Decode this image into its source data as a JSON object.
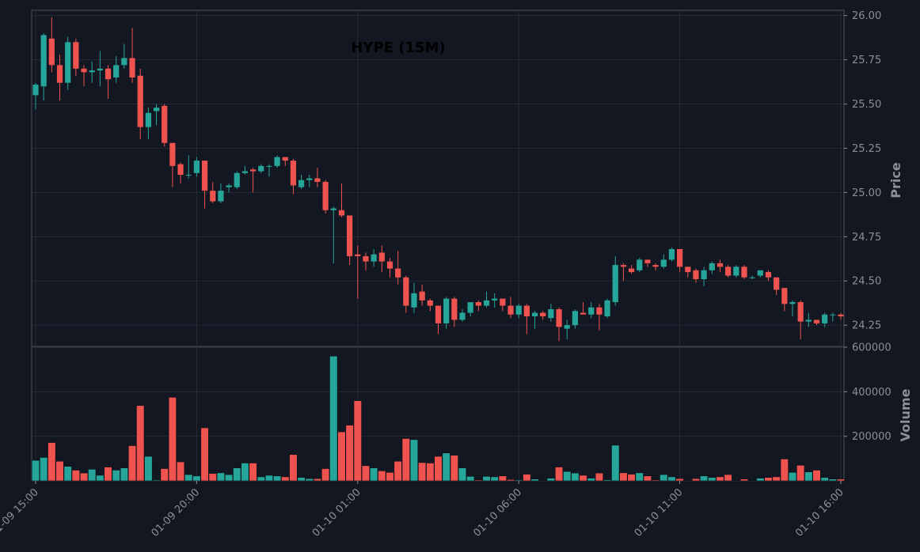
{
  "chart_data": {
    "type": "candlestick",
    "title": "HYPE (15M)",
    "interval": "15m",
    "colors": {
      "up": "#26a69a",
      "down": "#ef5350",
      "background": "#131722",
      "grid": "#2a2e39",
      "axis": "#8a8f98",
      "frame": "#3a3e48"
    },
    "price_panel": {
      "ylabel": "Price",
      "ylim": [
        24.13,
        26.03
      ],
      "yticks": [
        24.25,
        24.5,
        24.75,
        25.0,
        25.25,
        25.5,
        25.75,
        26.0
      ],
      "ytick_labels": [
        "24.25",
        "24.50",
        "24.75",
        "25.00",
        "25.25",
        "25.50",
        "25.75",
        "26.00"
      ]
    },
    "volume_panel": {
      "ylabel": "Volume",
      "ylim": [
        0,
        600000
      ],
      "yticks": [
        200000,
        400000,
        600000
      ],
      "ytick_labels": [
        "200000",
        "400000",
        "600000"
      ]
    },
    "x_axis": {
      "start": "01-09 15:00",
      "xticks": [
        0,
        20,
        40,
        60,
        80,
        100
      ],
      "xtick_labels": [
        "01-09 15:00",
        "01-09 20:00",
        "01-10 01:00",
        "01-10 06:00",
        "01-10 11:00",
        "01-10 16:00"
      ]
    },
    "grid": true,
    "ohlc": [
      [
        25.55,
        25.62,
        25.47,
        25.61
      ],
      [
        25.6,
        25.9,
        25.52,
        25.89
      ],
      [
        25.87,
        25.99,
        25.68,
        25.72
      ],
      [
        25.72,
        25.78,
        25.52,
        25.62
      ],
      [
        25.62,
        25.88,
        25.58,
        25.85
      ],
      [
        25.85,
        25.87,
        25.66,
        25.7
      ],
      [
        25.7,
        25.72,
        25.6,
        25.68
      ],
      [
        25.68,
        25.74,
        25.62,
        25.69
      ],
      [
        25.69,
        25.8,
        25.6,
        25.7
      ],
      [
        25.7,
        25.72,
        25.53,
        25.64
      ],
      [
        25.65,
        25.77,
        25.62,
        25.72
      ],
      [
        25.72,
        25.84,
        25.7,
        25.76
      ],
      [
        25.76,
        25.93,
        25.62,
        25.65
      ],
      [
        25.66,
        25.7,
        25.3,
        25.37
      ],
      [
        25.37,
        25.48,
        25.3,
        25.45
      ],
      [
        25.46,
        25.5,
        25.38,
        25.48
      ],
      [
        25.49,
        25.5,
        25.26,
        25.28
      ],
      [
        25.28,
        25.28,
        25.03,
        25.15
      ],
      [
        25.16,
        25.17,
        25.05,
        25.1
      ],
      [
        25.1,
        25.21,
        25.08,
        25.1
      ],
      [
        25.11,
        25.2,
        25.09,
        25.18
      ],
      [
        25.18,
        25.18,
        24.91,
        25.01
      ],
      [
        25.01,
        25.06,
        24.94,
        24.95
      ],
      [
        24.95,
        25.05,
        24.94,
        25.01
      ],
      [
        25.03,
        25.05,
        25.0,
        25.04
      ],
      [
        25.03,
        25.12,
        25.02,
        25.11
      ],
      [
        25.11,
        25.15,
        25.1,
        25.12
      ],
      [
        25.13,
        25.14,
        25.0,
        25.12
      ],
      [
        25.12,
        25.16,
        25.11,
        25.15
      ],
      [
        25.15,
        25.16,
        25.09,
        25.15
      ],
      [
        25.15,
        25.21,
        25.14,
        25.2
      ],
      [
        25.2,
        25.2,
        25.15,
        25.18
      ],
      [
        25.18,
        25.19,
        24.99,
        25.04
      ],
      [
        25.03,
        25.1,
        25.02,
        25.07
      ],
      [
        25.07,
        25.1,
        25.03,
        25.08
      ],
      [
        25.08,
        25.14,
        25.03,
        25.06
      ],
      [
        25.06,
        25.07,
        24.88,
        24.9
      ],
      [
        24.9,
        24.92,
        24.6,
        24.91
      ],
      [
        24.9,
        25.05,
        24.86,
        24.87
      ],
      [
        24.87,
        24.87,
        24.59,
        24.64
      ],
      [
        24.65,
        24.7,
        24.4,
        24.64
      ],
      [
        24.64,
        24.66,
        24.56,
        24.61
      ],
      [
        24.61,
        24.68,
        24.58,
        24.65
      ],
      [
        24.66,
        24.7,
        24.55,
        24.61
      ],
      [
        24.61,
        24.63,
        24.52,
        24.57
      ],
      [
        24.57,
        24.67,
        24.48,
        24.52
      ],
      [
        24.52,
        24.53,
        24.32,
        24.36
      ],
      [
        24.35,
        24.49,
        24.32,
        24.43
      ],
      [
        24.44,
        24.48,
        24.36,
        24.39
      ],
      [
        24.39,
        24.4,
        24.33,
        24.36
      ],
      [
        24.36,
        24.36,
        24.2,
        24.26
      ],
      [
        24.26,
        24.41,
        24.23,
        24.4
      ],
      [
        24.4,
        24.41,
        24.24,
        24.28
      ],
      [
        24.28,
        24.34,
        24.27,
        24.32
      ],
      [
        24.32,
        24.38,
        24.3,
        24.38
      ],
      [
        24.38,
        24.39,
        24.33,
        24.36
      ],
      [
        24.36,
        24.44,
        24.35,
        24.39
      ],
      [
        24.39,
        24.43,
        24.35,
        24.4
      ],
      [
        24.4,
        24.4,
        24.33,
        24.36
      ],
      [
        24.36,
        24.41,
        24.29,
        24.31
      ],
      [
        24.31,
        24.37,
        24.29,
        24.36
      ],
      [
        24.36,
        24.37,
        24.2,
        24.3
      ],
      [
        24.3,
        24.33,
        24.23,
        24.32
      ],
      [
        24.32,
        24.33,
        24.28,
        24.3
      ],
      [
        24.29,
        24.37,
        24.27,
        24.34
      ],
      [
        24.34,
        24.35,
        24.16,
        24.24
      ],
      [
        24.23,
        24.28,
        24.17,
        24.25
      ],
      [
        24.25,
        24.34,
        24.23,
        24.33
      ],
      [
        24.32,
        24.38,
        24.31,
        24.31
      ],
      [
        24.31,
        24.38,
        24.29,
        24.35
      ],
      [
        24.35,
        24.37,
        24.22,
        24.31
      ],
      [
        24.3,
        24.4,
        24.29,
        24.39
      ],
      [
        24.38,
        24.64,
        24.36,
        24.59
      ],
      [
        24.59,
        24.6,
        24.5,
        24.58
      ],
      [
        24.57,
        24.59,
        24.54,
        24.55
      ],
      [
        24.56,
        24.63,
        24.55,
        24.62
      ],
      [
        24.62,
        24.62,
        24.58,
        24.6
      ],
      [
        24.59,
        24.6,
        24.56,
        24.58
      ],
      [
        24.58,
        24.65,
        24.57,
        24.62
      ],
      [
        24.62,
        24.69,
        24.61,
        24.68
      ],
      [
        24.68,
        24.68,
        24.55,
        24.58
      ],
      [
        24.58,
        24.58,
        24.52,
        24.55
      ],
      [
        24.56,
        24.57,
        24.49,
        24.51
      ],
      [
        24.51,
        24.58,
        24.47,
        24.56
      ],
      [
        24.56,
        24.61,
        24.54,
        24.6
      ],
      [
        24.6,
        24.62,
        24.55,
        24.58
      ],
      [
        24.58,
        24.59,
        24.52,
        24.53
      ],
      [
        24.53,
        24.59,
        24.52,
        24.58
      ],
      [
        24.58,
        24.59,
        24.51,
        24.52
      ],
      [
        24.52,
        24.53,
        24.51,
        24.52
      ],
      [
        24.53,
        24.55,
        24.52,
        24.56
      ],
      [
        24.55,
        24.56,
        24.5,
        24.52
      ],
      [
        24.52,
        24.52,
        24.42,
        24.45
      ],
      [
        24.46,
        24.46,
        24.33,
        24.37
      ],
      [
        24.37,
        24.39,
        24.3,
        24.38
      ],
      [
        24.38,
        24.39,
        24.17,
        24.27
      ],
      [
        24.27,
        24.32,
        24.24,
        24.28
      ],
      [
        24.28,
        24.28,
        24.25,
        24.26
      ],
      [
        24.26,
        24.32,
        24.24,
        24.31
      ],
      [
        24.31,
        24.32,
        24.27,
        24.31
      ],
      [
        24.31,
        24.32,
        24.28,
        24.3
      ]
    ],
    "volume": [
      92000,
      105000,
      172000,
      88000,
      65000,
      48000,
      35000,
      52000,
      25000,
      62000,
      48000,
      58000,
      158000,
      338000,
      110000,
      4000,
      55000,
      375000,
      85000,
      28000,
      22000,
      238000,
      33000,
      36000,
      28000,
      58000,
      80000,
      80000,
      18000,
      25000,
      22000,
      18000,
      118000,
      15000,
      10000,
      10000,
      55000,
      560000,
      220000,
      250000,
      360000,
      68000,
      58000,
      45000,
      38000,
      88000,
      190000,
      185000,
      82000,
      80000,
      110000,
      125000,
      115000,
      58000,
      20000,
      4000,
      20000,
      18000,
      22000,
      6000,
      4000,
      30000,
      8000,
      2000,
      12000,
      62000,
      42000,
      35000,
      25000,
      12000,
      35000,
      5000,
      160000,
      36000,
      30000,
      36000,
      22000,
      4000,
      28000,
      18000,
      10000,
      2000,
      10000,
      22000,
      15000,
      18000,
      28000,
      2000,
      8000,
      2000,
      12000,
      15000,
      18000,
      98000,
      38000,
      70000,
      40000,
      48000,
      15000,
      8000,
      8000
    ]
  }
}
